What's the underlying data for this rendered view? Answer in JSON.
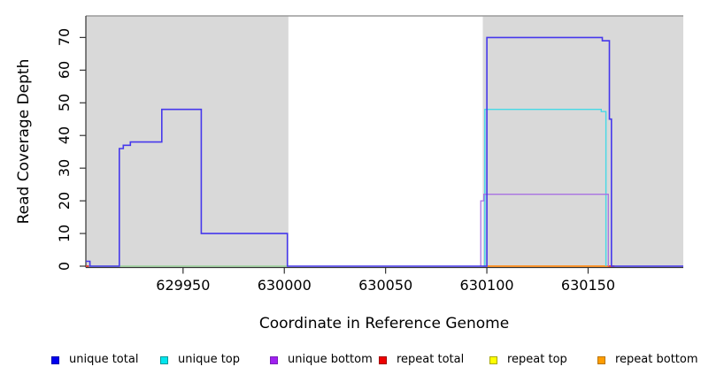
{
  "chart_data": {
    "type": "line",
    "title": "",
    "xlabel": "Coordinate in Reference Genome",
    "ylabel": "Read Coverage Depth",
    "xlim": [
      629902,
      630197
    ],
    "ylim": [
      0,
      76.6
    ],
    "x_ticks": [
      629950,
      630000,
      630050,
      630100,
      630150
    ],
    "y_ticks": [
      0,
      10,
      20,
      30,
      40,
      50,
      60,
      70
    ],
    "grid": false,
    "background_shade_color": "#d9d9d9",
    "shaded_regions": [
      {
        "x0": 629902,
        "x1": 630002
      },
      {
        "x0": 630098,
        "x1": 630197
      }
    ],
    "series": [
      {
        "name": "zero-baseline-overlap",
        "color": "#9ad49a",
        "width": 1.5,
        "segments": [
          [
            [
              629902,
              0
            ],
            [
              630001.5,
              0
            ]
          ]
        ]
      },
      {
        "name": "repeat total",
        "color": "#e43838",
        "width": 1.8,
        "segments": [
          [
            [
              629902,
              0
            ],
            [
              629903.5,
              0
            ]
          ],
          [
            [
              630159.5,
              0
            ],
            [
              630163,
              0
            ]
          ]
        ]
      },
      {
        "name": "repeat bottom",
        "color": "#ff8c1a",
        "width": 1.8,
        "segments": [
          [
            [
              630100,
              0
            ],
            [
              630160,
              0
            ]
          ]
        ]
      },
      {
        "name": "unique top",
        "color": "#45d9e6",
        "width": 1.4,
        "segments": [
          [
            [
              630099,
              0
            ],
            [
              630099,
              48
            ],
            [
              630156.5,
              48
            ],
            [
              630156.5,
              47.3
            ],
            [
              630158.8,
              47.3
            ],
            [
              630158.8,
              0
            ]
          ]
        ]
      },
      {
        "name": "unique bottom",
        "color": "#a972e2",
        "width": 1.3,
        "segments": [
          [
            [
              630097,
              0
            ],
            [
              630097,
              20
            ],
            [
              630098.5,
              20
            ],
            [
              630098.5,
              22
            ],
            [
              630160,
              22
            ],
            [
              630160,
              0
            ]
          ]
        ]
      },
      {
        "name": "unique total",
        "color": "#4638ec",
        "width": 1.6,
        "segments": [
          [
            [
              629902,
              1.5
            ],
            [
              629904,
              1.5
            ],
            [
              629904,
              0
            ],
            [
              629918.5,
              0
            ],
            [
              629918.5,
              36
            ],
            [
              629920.5,
              36
            ],
            [
              629920.5,
              37
            ],
            [
              629924,
              37
            ],
            [
              629924,
              38
            ],
            [
              629939.5,
              38
            ],
            [
              629939.5,
              48
            ],
            [
              629959,
              48
            ],
            [
              629959,
              10
            ],
            [
              630001.5,
              10
            ],
            [
              630001.5,
              0
            ],
            [
              630100,
              0
            ],
            [
              630100,
              70
            ],
            [
              630157,
              70
            ],
            [
              630157,
              69
            ],
            [
              630160.5,
              69
            ],
            [
              630160.5,
              45
            ],
            [
              630161.5,
              45
            ],
            [
              630161.5,
              0
            ],
            [
              630197,
              0
            ]
          ]
        ]
      }
    ],
    "legend": [
      {
        "label": "unique total",
        "fill": "#0000ee",
        "border": "#0000b0"
      },
      {
        "label": "unique top",
        "fill": "#00e5ee",
        "border": "#009898"
      },
      {
        "label": "unique bottom",
        "fill": "#a020f0",
        "border": "#7a1fb8"
      },
      {
        "label": "repeat total",
        "fill": "#ee0000",
        "border": "#a00000"
      },
      {
        "label": "repeat top",
        "fill": "#ffff00",
        "border": "#a8a800"
      },
      {
        "label": "repeat bottom",
        "fill": "#ff9d00",
        "border": "#b87400"
      }
    ],
    "legend_position": "bottom"
  }
}
